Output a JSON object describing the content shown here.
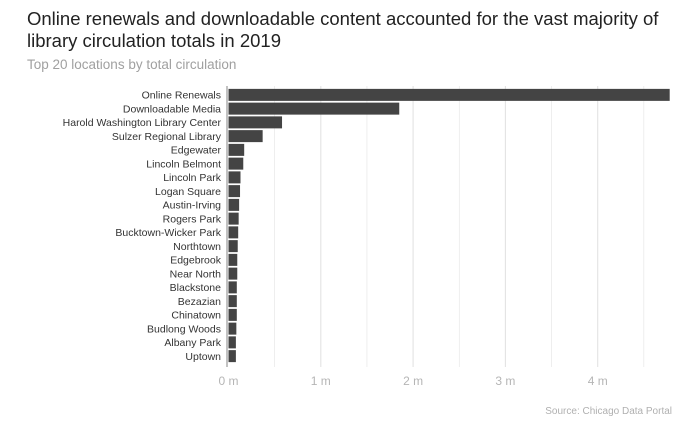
{
  "header": {
    "title": "Online renewals and downloadable content accounted for the vast majority of library circulation totals in 2019",
    "subtitle": "Top 20 locations by total circulation"
  },
  "footer": {
    "source": "Source: Chicago Data Portal"
  },
  "colors": {
    "bar": "#444444",
    "grid": "#e3e3e3",
    "axis": "#999999"
  },
  "chart_data": {
    "type": "bar",
    "orientation": "horizontal",
    "title": "Online renewals and downloadable content accounted for the vast majority of library circulation totals in 2019",
    "subtitle": "Top 20 locations by total circulation",
    "xlabel": "",
    "ylabel": "",
    "xlim": [
      0,
      4.8
    ],
    "grid": true,
    "legend": "none",
    "tick_values": [
      0,
      1,
      2,
      3,
      4
    ],
    "tick_labels": [
      "0 m",
      "1 m",
      "2 m",
      "3 m",
      "4 m"
    ],
    "categories": [
      "Online Renewals",
      "Downloadable Media",
      "Harold Washington Library Center",
      "Sulzer Regional Library",
      "Edgewater",
      "Lincoln Belmont",
      "Lincoln Park",
      "Logan Square",
      "Austin-Irving",
      "Rogers Park",
      "Bucktown-Wicker Park",
      "Northtown",
      "Edgebrook",
      "Near North",
      "Blackstone",
      "Bezazian",
      "Chinatown",
      "Budlong Woods",
      "Albany Park",
      "Uptown"
    ],
    "values": [
      4.78,
      1.85,
      0.58,
      0.37,
      0.17,
      0.16,
      0.13,
      0.125,
      0.115,
      0.11,
      0.105,
      0.1,
      0.095,
      0.095,
      0.09,
      0.09,
      0.09,
      0.085,
      0.08,
      0.08
    ]
  }
}
